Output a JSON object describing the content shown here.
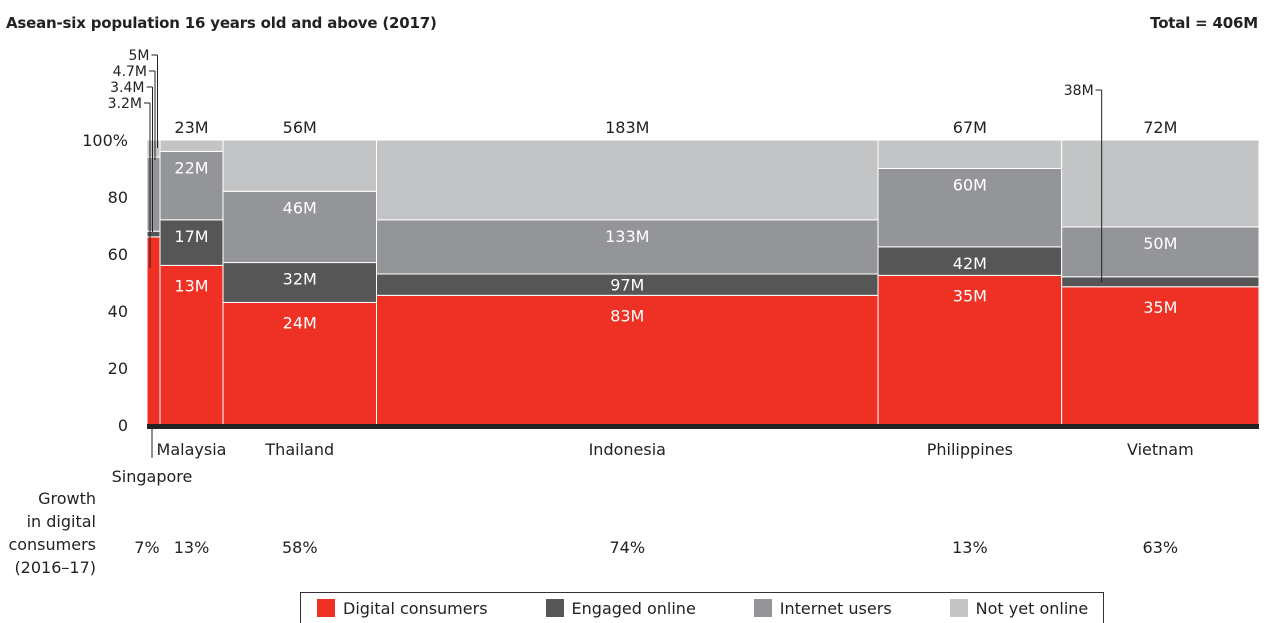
{
  "title": "Asean-six population 16 years old and above (2017)",
  "total": "Total = 406M",
  "colors": {
    "digital": "#ee3124",
    "engaged": "#565656",
    "internet": "#939598",
    "notyet": "#c3c4c6"
  },
  "chart_data": {
    "type": "bar",
    "title": "Asean-six population 16 years old and above (2017)",
    "ylabel": "",
    "ylim": [
      0,
      100
    ],
    "yticks": [
      "100%",
      "80",
      "60",
      "40",
      "20",
      "0"
    ],
    "growth_label": [
      "Growth",
      "in digital",
      "consumers",
      "(2016–17)"
    ],
    "countries": [
      {
        "name": "Singapore",
        "total": "5M",
        "width_units": 5,
        "growth": "7%",
        "segments": [
          {
            "series": "Digital consumers",
            "pct": 66,
            "label": "3.2M"
          },
          {
            "series": "Engaged online",
            "pct": 2,
            "label": "3.4M"
          },
          {
            "series": "Internet users",
            "pct": 26,
            "label": "4.7M"
          },
          {
            "series": "Not yet online",
            "pct": 6,
            "label": "5M"
          }
        ]
      },
      {
        "name": "Malaysia",
        "total": "23M",
        "width_units": 23,
        "growth": "13%",
        "segments": [
          {
            "series": "Digital consumers",
            "pct": 56,
            "label": "13M"
          },
          {
            "series": "Engaged online",
            "pct": 16,
            "label": "17M"
          },
          {
            "series": "Internet users",
            "pct": 24,
            "label": "22M"
          },
          {
            "series": "Not yet online",
            "pct": 4,
            "label": ""
          }
        ]
      },
      {
        "name": "Thailand",
        "total": "56M",
        "width_units": 56,
        "growth": "58%",
        "segments": [
          {
            "series": "Digital consumers",
            "pct": 43,
            "label": "24M"
          },
          {
            "series": "Engaged online",
            "pct": 14,
            "label": "32M"
          },
          {
            "series": "Internet users",
            "pct": 25,
            "label": "46M"
          },
          {
            "series": "Not yet online",
            "pct": 18,
            "label": ""
          }
        ]
      },
      {
        "name": "Indonesia",
        "total": "183M",
        "width_units": 183,
        "growth": "74%",
        "segments": [
          {
            "series": "Digital consumers",
            "pct": 45.5,
            "label": "83M"
          },
          {
            "series": "Engaged online",
            "pct": 7.5,
            "label": "97M"
          },
          {
            "series": "Internet users",
            "pct": 19,
            "label": "133M"
          },
          {
            "series": "Not yet online",
            "pct": 28,
            "label": ""
          }
        ]
      },
      {
        "name": "Philippines",
        "total": "67M",
        "width_units": 67,
        "growth": "13%",
        "segments": [
          {
            "series": "Digital consumers",
            "pct": 52.5,
            "label": "35M"
          },
          {
            "series": "Engaged online",
            "pct": 10,
            "label": "42M"
          },
          {
            "series": "Internet users",
            "pct": 27.5,
            "label": "60M"
          },
          {
            "series": "Not yet online",
            "pct": 10,
            "label": ""
          }
        ]
      },
      {
        "name": "Vietnam",
        "total": "72M",
        "width_units": 72,
        "growth": "63%",
        "segments": [
          {
            "series": "Digital consumers",
            "pct": 48.5,
            "label": "35M"
          },
          {
            "series": "Engaged online",
            "pct": 3.5,
            "label": "38M"
          },
          {
            "series": "Internet users",
            "pct": 17.5,
            "label": "50M"
          },
          {
            "series": "Not yet online",
            "pct": 30.5,
            "label": ""
          }
        ]
      }
    ],
    "legend": [
      "Digital consumers",
      "Engaged online",
      "Internet users",
      "Not yet online"
    ]
  }
}
